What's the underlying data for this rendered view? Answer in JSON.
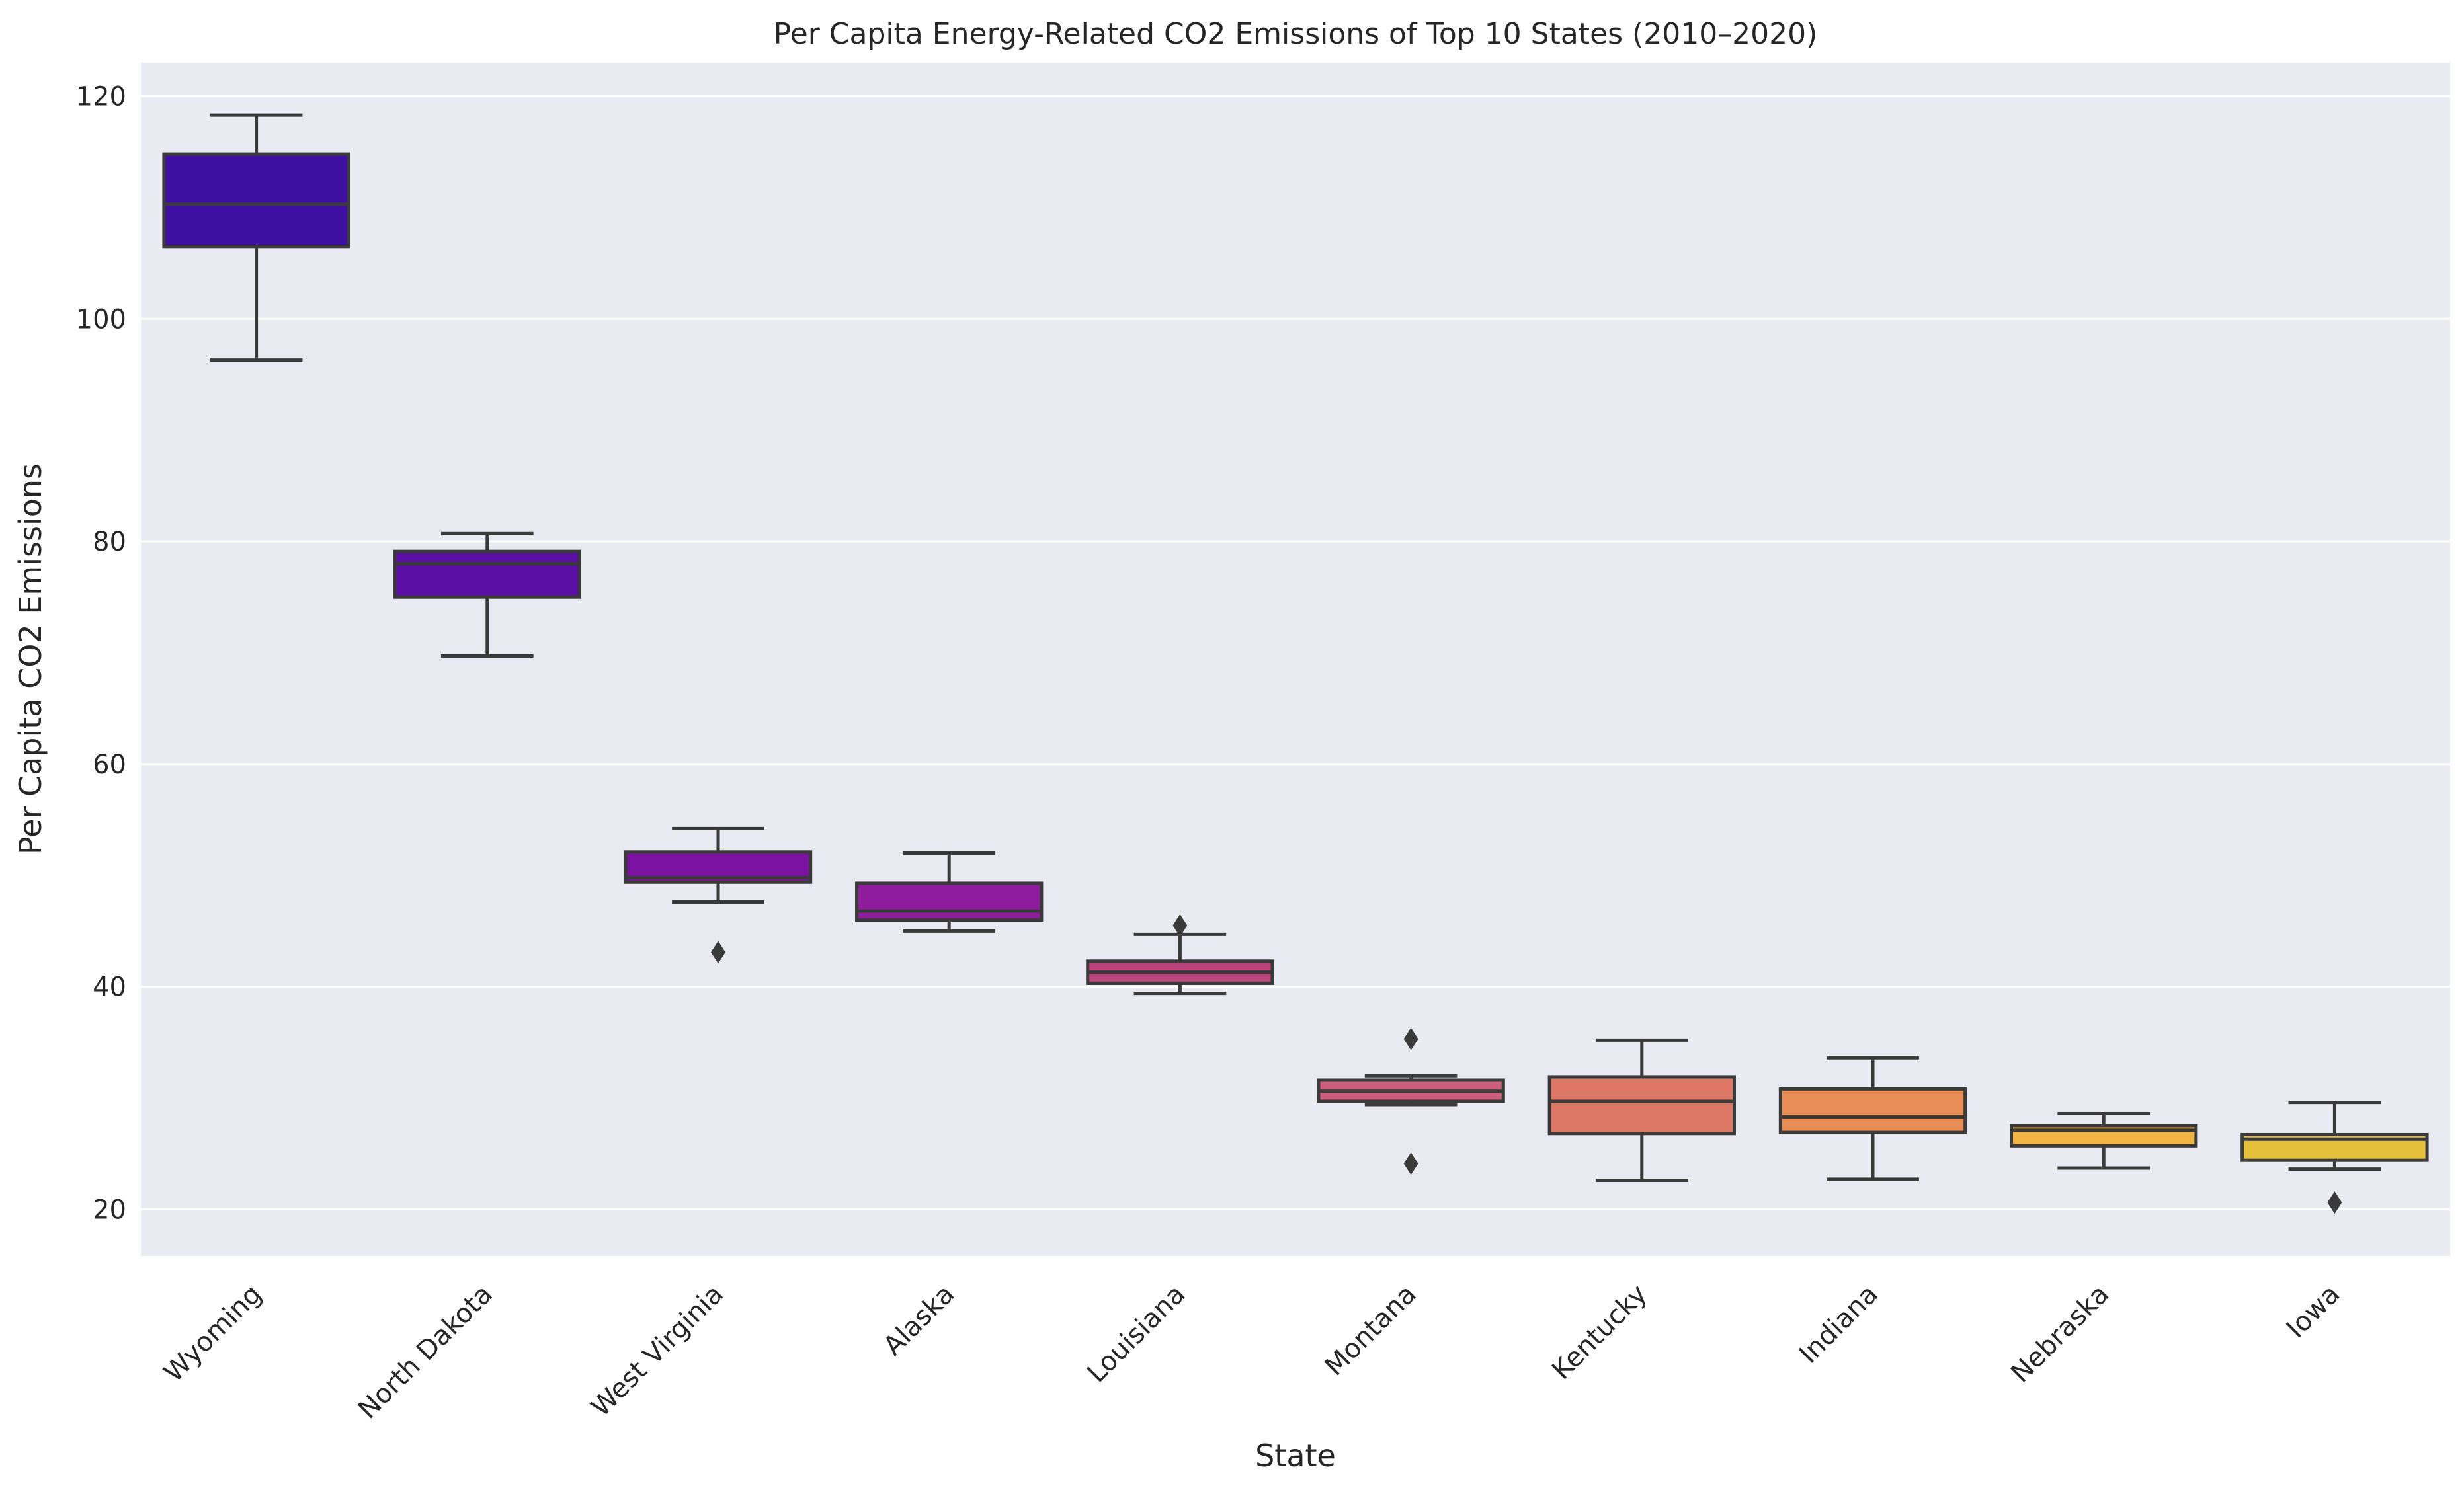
{
  "chart_data": {
    "type": "box",
    "title": "Per Capita Energy-Related CO2 Emissions of Top 10 States (2010–2020)",
    "xlabel": "State",
    "ylabel": "Per Capita CO2 Emissions",
    "ylim": [
      15.8,
      123
    ],
    "yticks": [
      20,
      40,
      60,
      80,
      100,
      120
    ],
    "grid": true,
    "background": "#eaeaf2",
    "grid_color": "#ffffff",
    "box_edge_color": "#3a3a3a",
    "categories": [
      "Wyoming",
      "North Dakota",
      "West Virginia",
      "Alaska",
      "Louisiana",
      "Montana",
      "Kentucky",
      "Indiana",
      "Nebraska",
      "Iowa"
    ],
    "colors": [
      "#3e0fa0",
      "#5b0ea3",
      "#7b12a1",
      "#8f1b9d",
      "#b9437b",
      "#cc5d7c",
      "#dd7765",
      "#e78d55",
      "#f1b445",
      "#e5c03a"
    ],
    "boxes": [
      {
        "whisker_low": 96.3,
        "q1": 106.5,
        "median": 110.3,
        "q3": 114.8,
        "whisker_high": 118.3,
        "outliers": []
      },
      {
        "whisker_low": 69.7,
        "q1": 75.0,
        "median": 78.0,
        "q3": 79.1,
        "whisker_high": 80.7,
        "outliers": []
      },
      {
        "whisker_low": 47.6,
        "q1": 49.4,
        "median": 49.8,
        "q3": 52.1,
        "whisker_high": 54.2,
        "outliers": [
          43.1
        ]
      },
      {
        "whisker_low": 45.0,
        "q1": 46.0,
        "median": 46.8,
        "q3": 49.3,
        "whisker_high": 52.0,
        "outliers": []
      },
      {
        "whisker_low": 39.4,
        "q1": 40.3,
        "median": 41.3,
        "q3": 42.3,
        "whisker_high": 44.7,
        "outliers": [
          45.5
        ]
      },
      {
        "whisker_low": 29.4,
        "q1": 29.7,
        "median": 30.6,
        "q3": 31.6,
        "whisker_high": 32.0,
        "outliers": [
          35.3,
          24.1
        ]
      },
      {
        "whisker_low": 22.6,
        "q1": 26.8,
        "median": 29.7,
        "q3": 31.9,
        "whisker_high": 35.2,
        "outliers": []
      },
      {
        "whisker_low": 22.7,
        "q1": 26.9,
        "median": 28.3,
        "q3": 30.8,
        "whisker_high": 33.6,
        "outliers": []
      },
      {
        "whisker_low": 23.7,
        "q1": 25.7,
        "median": 27.1,
        "q3": 27.5,
        "whisker_high": 28.6,
        "outliers": []
      },
      {
        "whisker_low": 23.6,
        "q1": 24.4,
        "median": 26.3,
        "q3": 26.7,
        "whisker_high": 29.6,
        "outliers": [
          20.6
        ]
      }
    ]
  }
}
